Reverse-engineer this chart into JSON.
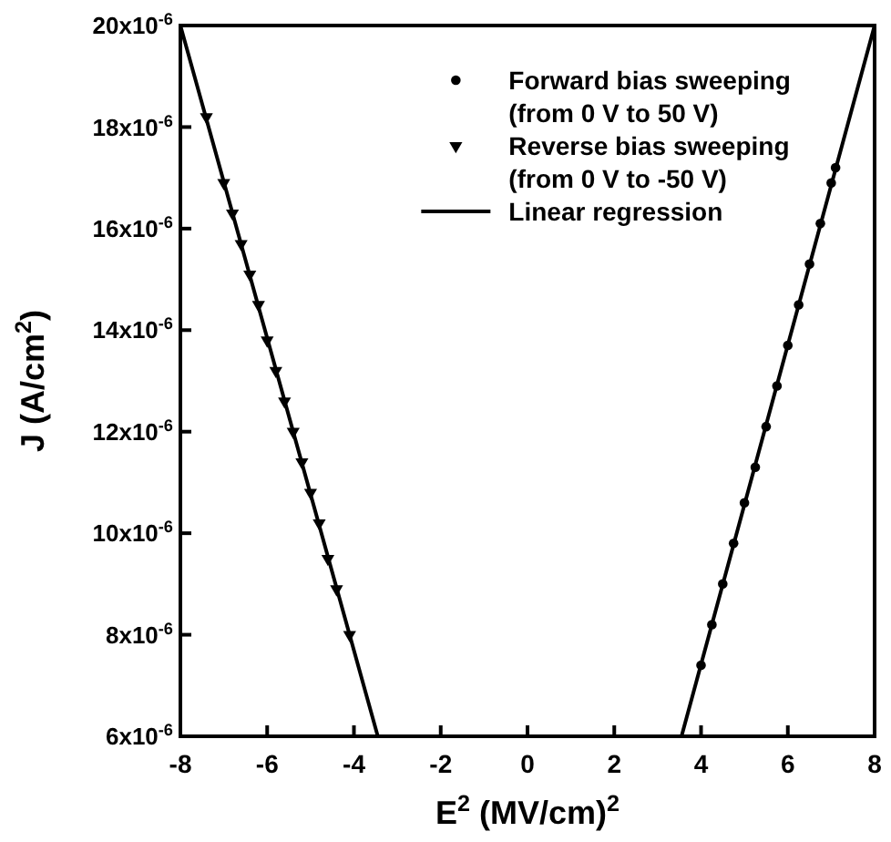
{
  "chart_data": {
    "type": "scatter",
    "xlabel": "E$^{2}$ (MV/cm)$^{2}$",
    "ylabel": "J (A/cm$^{2}$)",
    "xlim": [
      -8,
      8
    ],
    "xticks": [
      -8,
      -6,
      -4,
      -2,
      0,
      2,
      4,
      6,
      8
    ],
    "ylim": [
      6e-06,
      2e-05
    ],
    "yticks": [
      {
        "value": 6e-06,
        "label": "6x10$^{-6}$"
      },
      {
        "value": 8e-06,
        "label": "8x10$^{-6}$"
      },
      {
        "value": 1e-05,
        "label": "10x10$^{-6}$"
      },
      {
        "value": 1.2e-05,
        "label": "12x10$^{-6}$"
      },
      {
        "value": 1.4e-05,
        "label": "14x10$^{-6}$"
      },
      {
        "value": 1.6e-05,
        "label": "16x10$^{-6}$"
      },
      {
        "value": 1.8e-05,
        "label": "18x10$^{-6}$"
      },
      {
        "value": 2e-05,
        "label": "20x10$^{-6}$"
      }
    ],
    "grid": false,
    "legend": "top right",
    "series": [
      {
        "name": "Forward bias sweeping\n(from 0 V to 50 V)",
        "color": "#000000",
        "marker": "circle",
        "x": [
          4.0,
          4.25,
          4.5,
          4.75,
          5.0,
          5.25,
          5.5,
          5.75,
          6.0,
          6.25,
          6.5,
          6.75,
          7.0,
          7.1
        ],
        "values": [
          7.4e-06,
          8.2e-06,
          9e-06,
          9.8e-06,
          1.06e-05,
          1.13e-05,
          1.21e-05,
          1.29e-05,
          1.37e-05,
          1.45e-05,
          1.53e-05,
          1.61e-05,
          1.69e-05,
          1.72e-05
        ]
      },
      {
        "name": "Reverse bias sweeping\n(from 0 V to -50 V)",
        "color": "#000000",
        "marker": "triangle",
        "x": [
          -7.4,
          -7.0,
          -6.8,
          -6.6,
          -6.4,
          -6.2,
          -6.0,
          -5.8,
          -5.6,
          -5.4,
          -5.2,
          -5.0,
          -4.8,
          -4.6,
          -4.4,
          -4.1
        ],
        "values": [
          1.82e-05,
          1.69e-05,
          1.63e-05,
          1.57e-05,
          1.51e-05,
          1.45e-05,
          1.38e-05,
          1.32e-05,
          1.26e-05,
          1.2e-05,
          1.14e-05,
          1.08e-05,
          1.02e-05,
          9.5e-06,
          8.9e-06,
          8e-06
        ]
      },
      {
        "name": "Linear regression",
        "type": "line",
        "color": "#000000",
        "line_style": "solid",
        "marker": "none",
        "x": [
          -8,
          -3.45,
          0,
          3.55,
          8
        ],
        "values": [
          2e-05,
          6e-06,
          null,
          6e-06,
          2e-05
        ]
      }
    ]
  }
}
